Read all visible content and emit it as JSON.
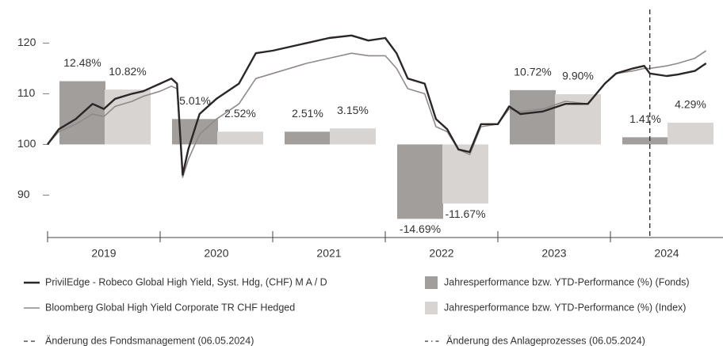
{
  "chart_data": {
    "type": "combo",
    "categories": [
      "2019",
      "2020",
      "2021",
      "2022",
      "2023",
      "2024"
    ],
    "ylim": [
      81.5,
      128.5
    ],
    "yticks": [
      90,
      100,
      110,
      120
    ],
    "y2lim": [
      -18.5,
      28.5
    ],
    "xlim": [
      2019,
      2025
    ],
    "bars": [
      {
        "name": "Jahresperformance bzw. YTD-Performance (%) (Fonds)",
        "color": "#a19e9c",
        "axis": "y2",
        "values": [
          12.48,
          5.01,
          2.51,
          -14.69,
          10.72,
          1.41
        ],
        "value_labels": [
          "12.48%",
          "5.01%",
          "2.51%",
          "-14.69%",
          "10.72%",
          "1.41%"
        ]
      },
      {
        "name": "Jahresperformance bzw. YTD-Performance (%) (Index)",
        "color": "#d7d4d1",
        "axis": "y2",
        "values": [
          10.82,
          2.52,
          3.15,
          -11.67,
          9.9,
          4.29
        ],
        "value_labels": [
          "10.82%",
          "2.52%",
          "3.15%",
          "-11.67%",
          "9.90%",
          "4.29%"
        ]
      }
    ],
    "x": [
      2019.0,
      2019.1,
      2019.25,
      2019.4,
      2019.5,
      2019.6,
      2019.75,
      2019.85,
      2020.0,
      2020.1,
      2020.15,
      2020.2,
      2020.25,
      2020.35,
      2020.5,
      2020.7,
      2020.85,
      2021.0,
      2021.3,
      2021.5,
      2021.7,
      2021.85,
      2022.0,
      2022.1,
      2022.2,
      2022.35,
      2022.45,
      2022.55,
      2022.65,
      2022.75,
      2022.85,
      2023.0,
      2023.1,
      2023.2,
      2023.4,
      2023.6,
      2023.8,
      2023.95,
      2024.05,
      2024.2,
      2024.3,
      2024.35,
      2024.5,
      2024.6,
      2024.75,
      2024.85
    ],
    "series": [
      {
        "name": "PrivilEdge - Robeco Global High Yield, Syst. Hdg, (CHF) M A / D",
        "color": "#2b2727",
        "values": [
          100,
          103,
          105,
          108,
          107,
          109,
          110,
          110.5,
          112,
          113,
          112,
          94,
          99,
          106,
          109,
          112,
          118,
          118.5,
          120,
          121,
          121.5,
          120.5,
          121,
          118,
          113,
          112,
          105,
          103,
          99,
          98.5,
          104,
          104,
          107.5,
          106,
          106.5,
          108,
          108,
          112,
          114,
          115,
          115.5,
          114,
          113.5,
          113.8,
          114.5,
          116
        ]
      },
      {
        "name": "Bloomberg Global High Yield Corporate TR CHF Hedged",
        "color": "#8f8a87",
        "values": [
          100,
          102.5,
          104,
          106,
          105.5,
          107.5,
          108.5,
          109.5,
          110.5,
          111.5,
          111,
          93.5,
          97,
          102,
          105,
          108,
          113,
          114,
          116,
          117,
          118,
          117.5,
          117.5,
          115,
          111,
          110,
          103.5,
          102.5,
          99,
          98,
          103.5,
          104,
          107,
          106.5,
          107,
          108.5,
          108,
          112,
          114,
          114.5,
          115,
          115,
          115.5,
          116,
          117,
          118.5
        ]
      }
    ],
    "vline": {
      "x": 2024.35,
      "color": "#2b2727"
    },
    "annotations": [
      "Änderung des Fondsmanagement (06.05.2024)",
      "Änderung des Anlageprozesses (06.05.2024)"
    ]
  }
}
